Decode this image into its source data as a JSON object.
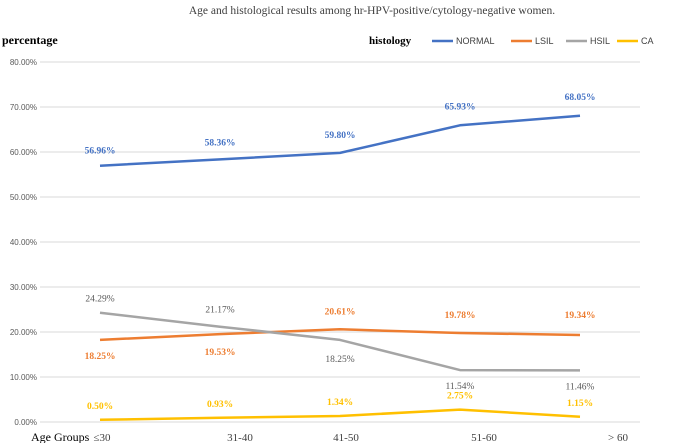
{
  "chart_data": {
    "type": "line",
    "title": "Age and histological results among hr-HPV-positive/cytology-negative women.",
    "ylabel": "percentage",
    "xlabel": "Age Groups",
    "legend_title": "histology",
    "legend_position": "top-right",
    "grid": true,
    "ylim": [
      0,
      80
    ],
    "yticks": [
      "0.00%",
      "10.00%",
      "20.00%",
      "30.00%",
      "40.00%",
      "50.00%",
      "60.00%",
      "70.00%",
      "80.00%"
    ],
    "categories": [
      "≤30",
      "31-40",
      "41-50",
      "51-60",
      "> 60"
    ],
    "series": [
      {
        "name": "NORMAL",
        "color": "#4472C4",
        "values": [
          56.96,
          58.36,
          59.8,
          65.93,
          68.05
        ],
        "labels": [
          "56.96%",
          "58.36%",
          "59.80%",
          "65.93%",
          "68.05%"
        ]
      },
      {
        "name": "LSIL",
        "color": "#ED7D31",
        "values": [
          18.25,
          19.53,
          20.61,
          19.78,
          19.34
        ],
        "labels": [
          "18.25%",
          "19.53%",
          "20.61%",
          "19.78%",
          "19.34%"
        ]
      },
      {
        "name": "HSIL",
        "color": "#A5A5A5",
        "values": [
          24.29,
          21.17,
          18.25,
          11.54,
          11.46
        ],
        "labels": [
          "24.29%",
          "21.17%",
          "18.25%",
          "11.54%",
          "11.46%"
        ]
      },
      {
        "name": "CA",
        "color": "#FFC000",
        "values": [
          0.5,
          0.93,
          1.34,
          2.75,
          1.15
        ],
        "labels": [
          "0.50%",
          "0.93%",
          "1.34%",
          "2.75%",
          "1.15%"
        ]
      }
    ]
  }
}
